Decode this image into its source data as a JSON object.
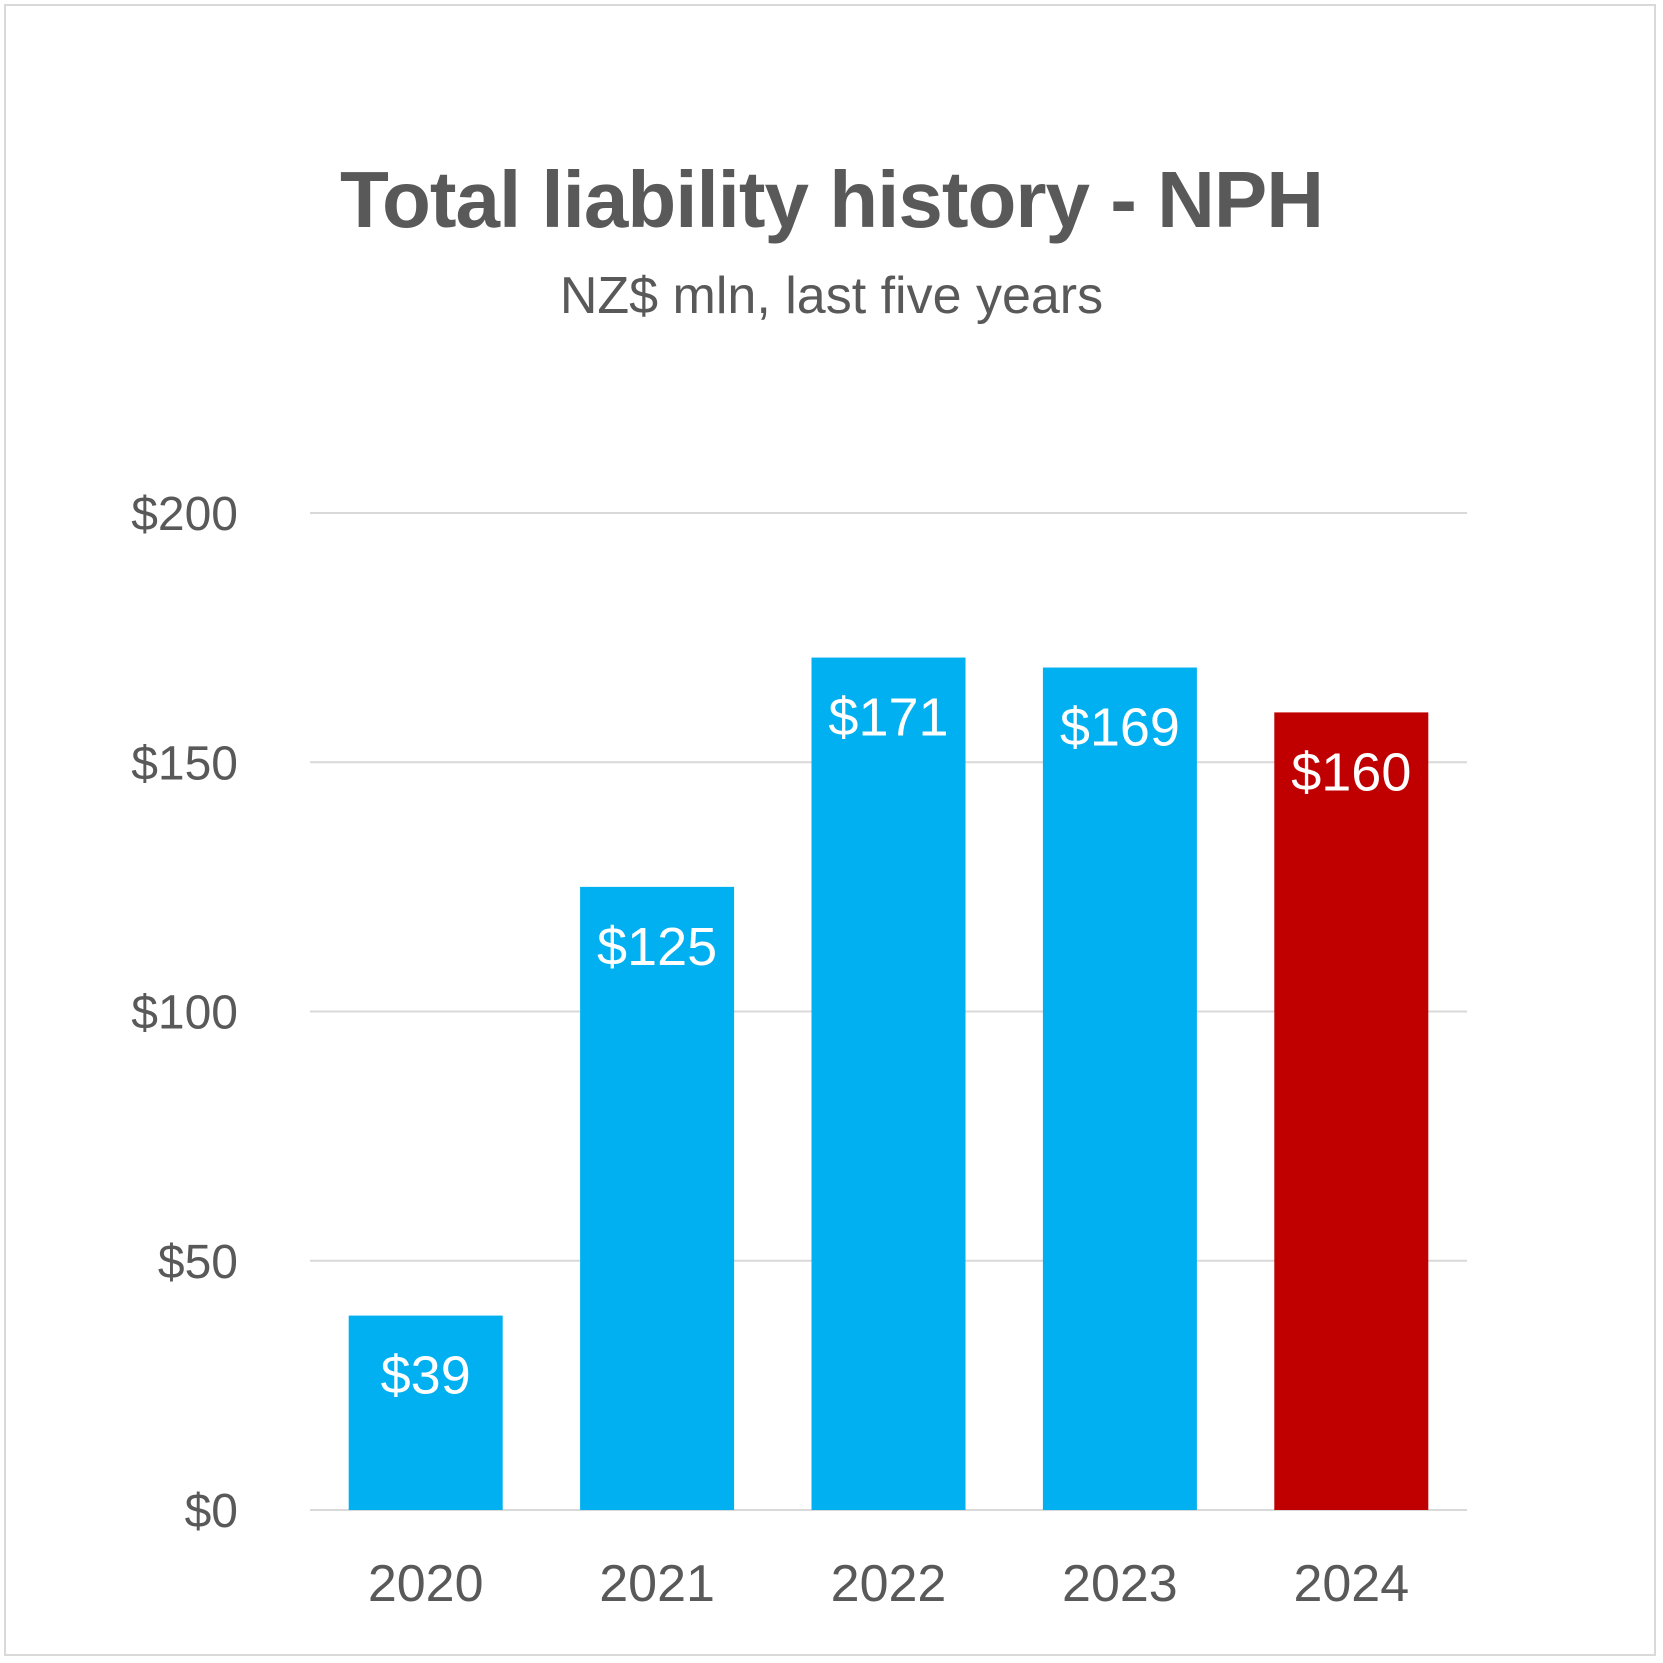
{
  "chart_data": {
    "type": "bar",
    "title": "Total liability history - NPH",
    "subtitle": "NZ$ mln, last five years",
    "xlabel": "",
    "ylabel": "",
    "categories": [
      "2020",
      "2021",
      "2022",
      "2023",
      "2024"
    ],
    "values": [
      39,
      125,
      171,
      169,
      160
    ],
    "data_labels": [
      "$39",
      "$125",
      "$171",
      "$169",
      "$160"
    ],
    "bar_colors": [
      "#00B0F0",
      "#00B0F0",
      "#00B0F0",
      "#00B0F0",
      "#C00000"
    ],
    "ylim": [
      0,
      200
    ],
    "y_ticks": [
      0,
      50,
      100,
      150,
      200
    ],
    "y_tick_labels": [
      "$0",
      "$50",
      "$100",
      "$150",
      "$200"
    ],
    "grid": true,
    "gridline_color": "#d9d9d9",
    "text_color": "#595959"
  }
}
